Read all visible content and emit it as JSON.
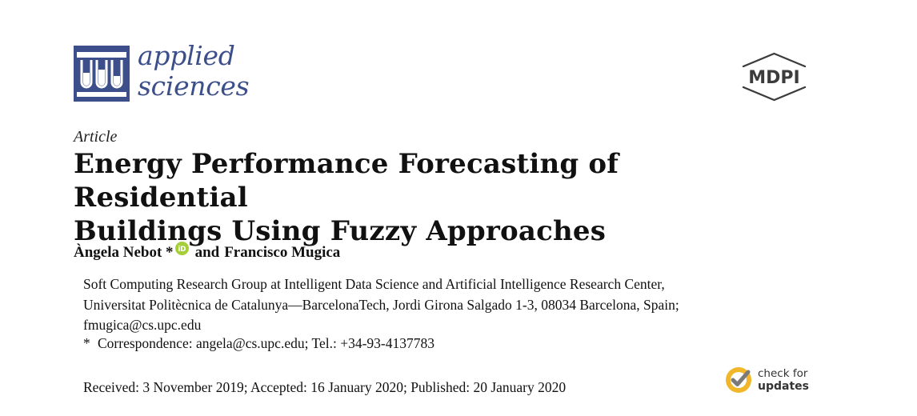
{
  "journal": {
    "name_line1": "applied",
    "name_line2": "sciences",
    "brand_color": "#3d4f8a",
    "icon": "test-tubes-icon"
  },
  "publisher": {
    "name": "MDPI",
    "icon": "hexagon-logo-icon"
  },
  "article": {
    "type": "Article",
    "title_line1": "Energy Performance Forecasting of Residential",
    "title_line2": "Buildings Using Fuzzy Approaches",
    "authors": {
      "author1": "Àngela Nebot *",
      "conjunction": "and",
      "author2": "Francisco Mugica",
      "orcid_icon": "orcid-icon",
      "orcid_color": "#a6ce39"
    },
    "affiliation": {
      "line1": "Soft Computing Research Group at Intelligent Data Science and Artificial Intelligence Research Center,",
      "line2": "Universitat Politècnica de Catalunya—BarcelonaTech, Jordi Girona Salgado 1-3, 08034 Barcelona, Spain;",
      "line3": "fmugica@cs.upc.edu"
    },
    "correspondence": {
      "marker": "*",
      "text": "Correspondence: angela@cs.upc.edu; Tel.: +34-93-4137783"
    },
    "dates": "Received: 3 November 2019; Accepted: 16 January 2020; Published: 20 January 2020"
  },
  "check_updates": {
    "line1": "check for",
    "line2": "updates",
    "icon": "check-badge-icon",
    "accent_color": "#f2b62a"
  }
}
